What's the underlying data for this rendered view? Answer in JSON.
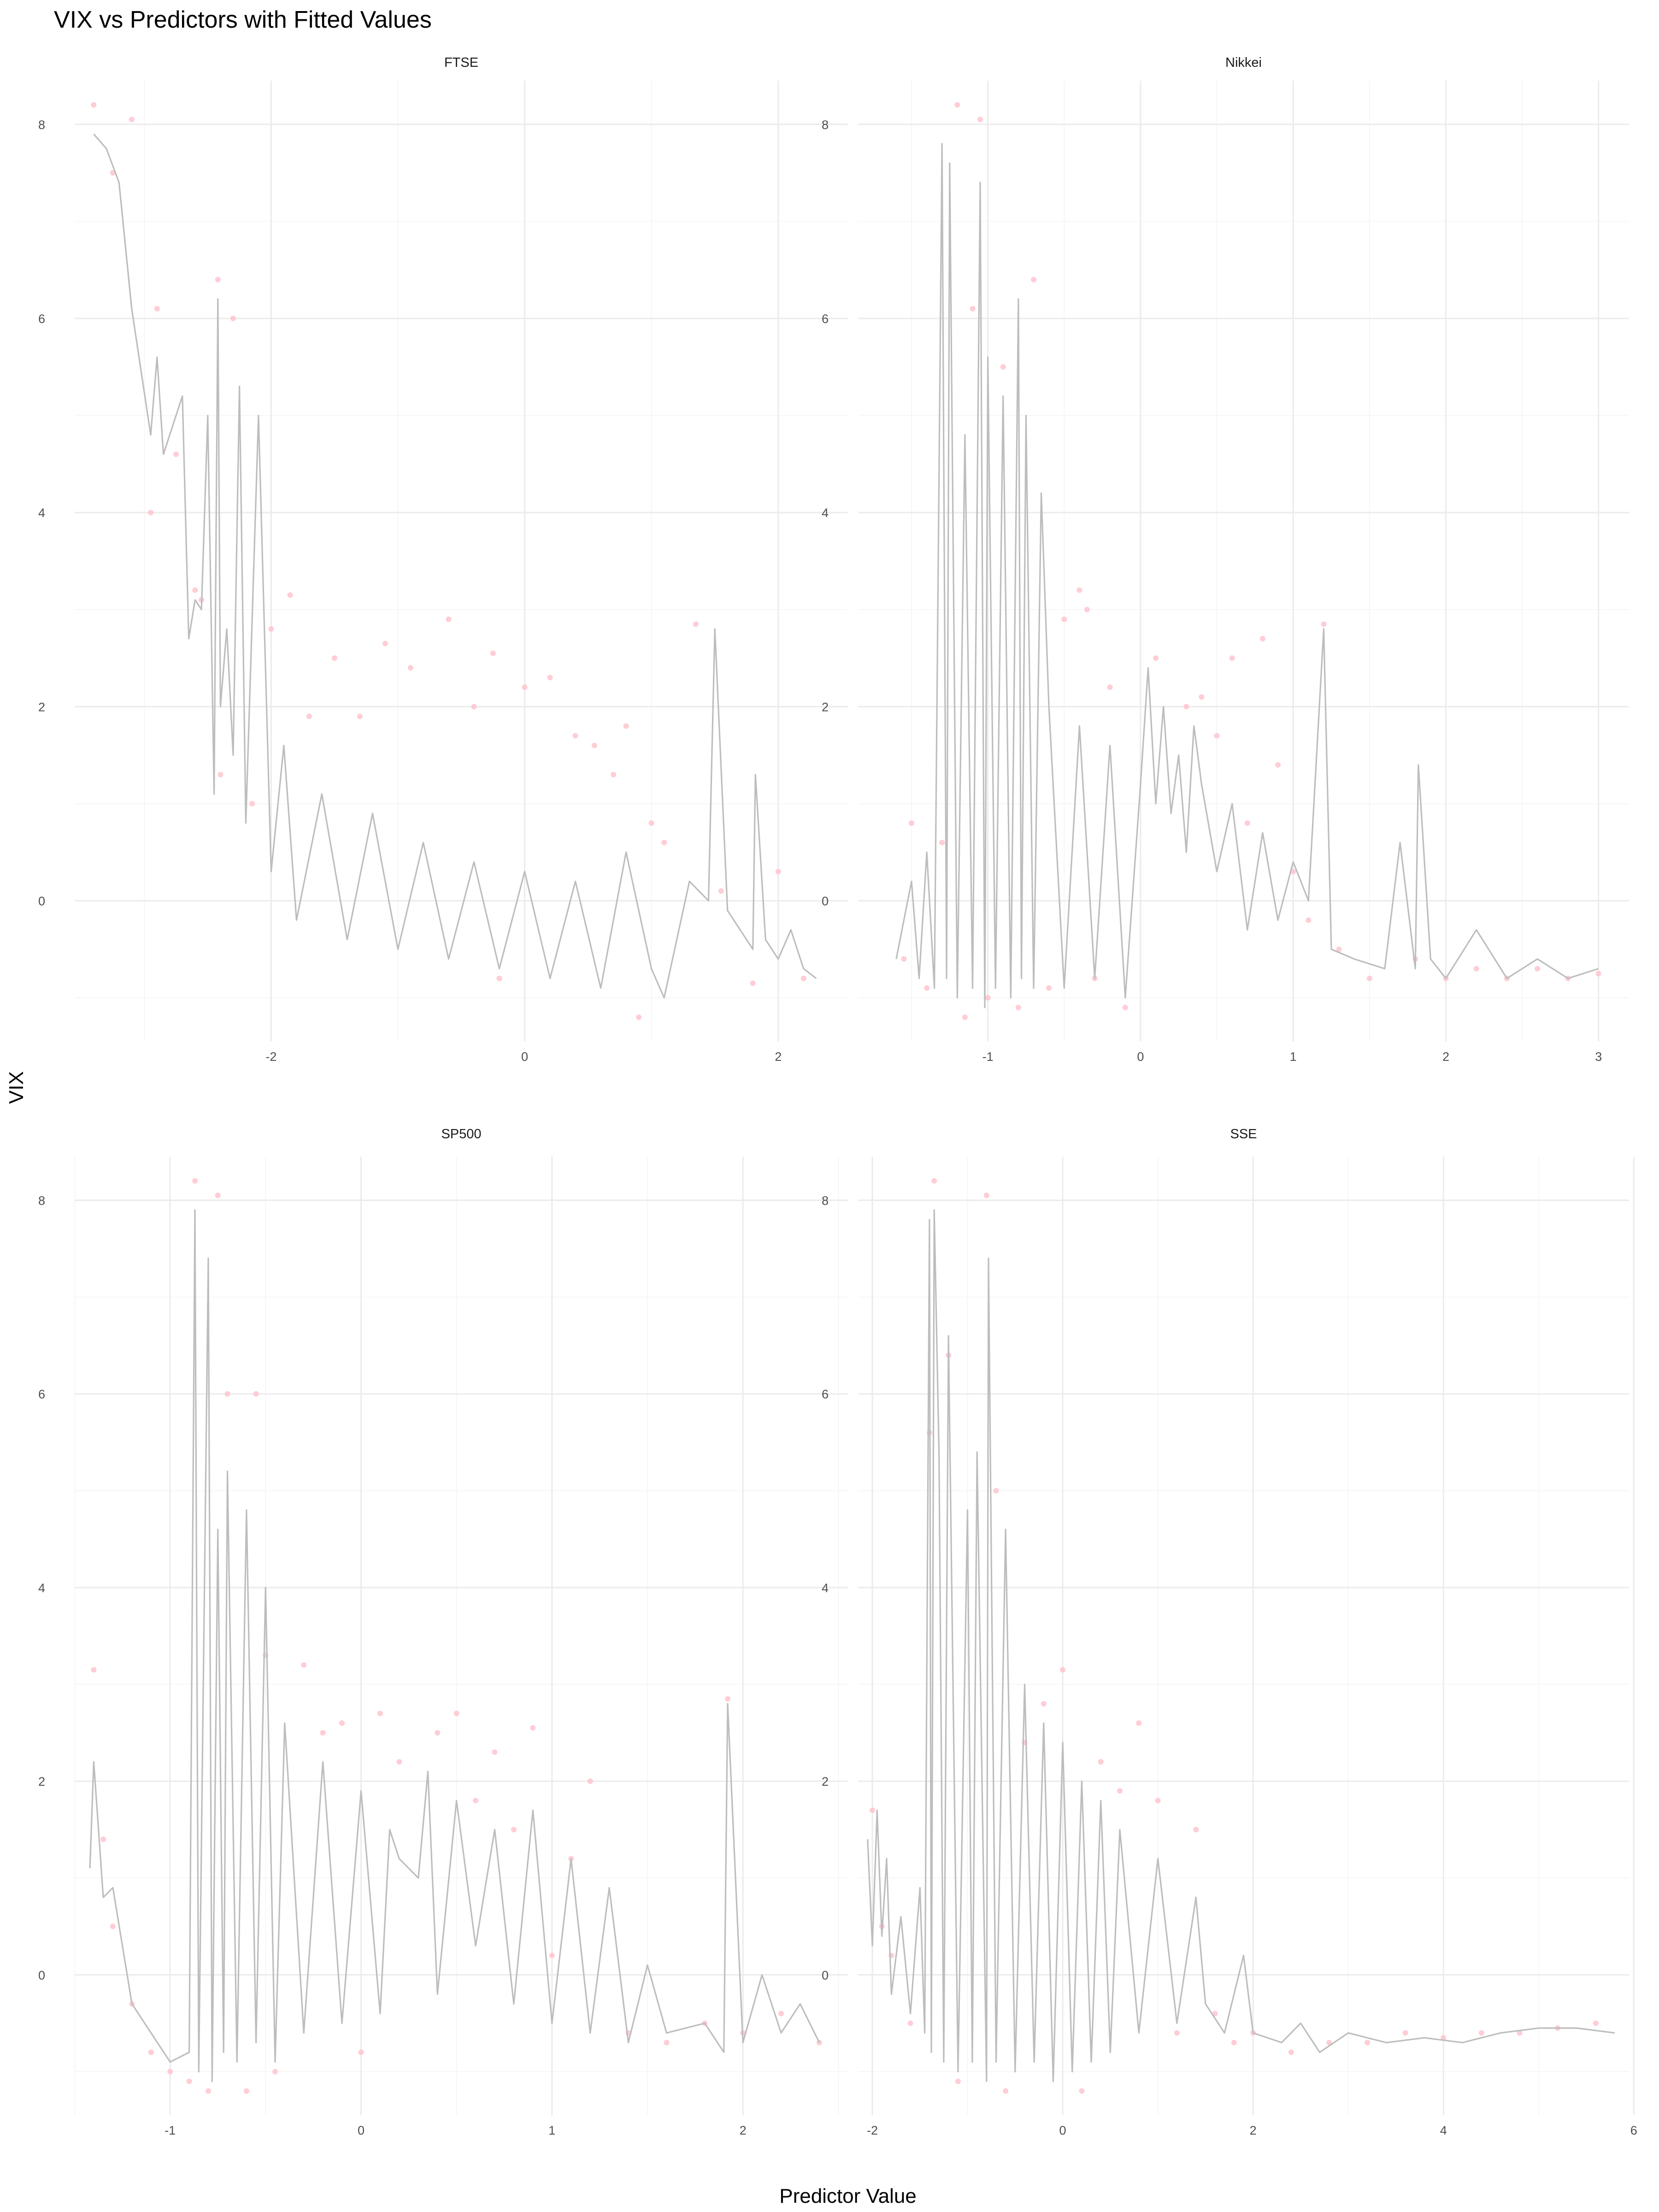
{
  "title": "VIX vs Predictors with Fitted Values",
  "xlabel": "Predictor Value",
  "ylabel": "VIX",
  "colors": {
    "points": "#ffc0cb",
    "fitted_line": "#bdbdbd",
    "grid": "#ebebeb"
  },
  "chart_data": [
    {
      "type": "scatter",
      "panel": "FTSE",
      "xlim": [
        -3.55,
        2.55
      ],
      "ylim": [
        -1.45,
        8.45
      ],
      "x_ticks": [
        -2,
        0,
        2
      ],
      "y_ticks": [
        0,
        2,
        4,
        6,
        8
      ],
      "grid": true,
      "series": [
        {
          "name": "",
          "kind": "points",
          "x": [
            -3.4,
            -3.25,
            -3.1,
            -2.95,
            -2.9,
            -2.75,
            -2.6,
            -2.55,
            -2.42,
            -2.4,
            -2.3,
            -2.15,
            -2.0,
            -1.85,
            -1.7,
            -1.5,
            -1.3,
            -1.1,
            -0.9,
            -0.6,
            -0.4,
            -0.25,
            -0.2,
            0.0,
            0.2,
            0.4,
            0.55,
            0.7,
            0.8,
            0.9,
            1.0,
            1.1,
            1.35,
            1.55,
            1.8,
            2.0,
            2.2
          ],
          "y": [
            8.2,
            7.5,
            8.05,
            4.0,
            6.1,
            4.6,
            3.2,
            3.1,
            6.4,
            1.3,
            6.0,
            1.0,
            2.8,
            3.15,
            1.9,
            2.5,
            1.9,
            2.65,
            2.4,
            2.9,
            2.0,
            2.55,
            -0.8,
            2.2,
            2.3,
            1.7,
            1.6,
            1.3,
            1.8,
            -1.2,
            0.8,
            0.6,
            2.85,
            0.1,
            -0.85,
            0.3,
            -0.8
          ]
        },
        {
          "name": "",
          "kind": "line",
          "x": [
            -3.4,
            -3.3,
            -3.2,
            -3.1,
            -2.95,
            -2.9,
            -2.85,
            -2.8,
            -2.7,
            -2.65,
            -2.6,
            -2.55,
            -2.5,
            -2.45,
            -2.42,
            -2.4,
            -2.35,
            -2.3,
            -2.25,
            -2.2,
            -2.1,
            -2.0,
            -1.9,
            -1.8,
            -1.6,
            -1.4,
            -1.2,
            -1.0,
            -0.8,
            -0.6,
            -0.4,
            -0.2,
            0.0,
            0.2,
            0.4,
            0.6,
            0.8,
            1.0,
            1.1,
            1.3,
            1.45,
            1.5,
            1.6,
            1.8,
            1.82,
            1.9,
            2.0,
            2.1,
            2.2,
            2.3
          ],
          "y": [
            7.9,
            7.75,
            7.4,
            6.1,
            4.8,
            5.6,
            4.6,
            4.8,
            5.2,
            2.7,
            3.1,
            3.0,
            5.0,
            1.1,
            6.2,
            2.0,
            2.8,
            1.5,
            5.3,
            0.8,
            5.0,
            0.3,
            1.6,
            -0.2,
            1.1,
            -0.4,
            0.9,
            -0.5,
            0.6,
            -0.6,
            0.4,
            -0.7,
            0.3,
            -0.8,
            0.2,
            -0.9,
            0.5,
            -0.7,
            -1.0,
            0.2,
            0.0,
            2.8,
            -0.1,
            -0.5,
            1.3,
            -0.4,
            -0.6,
            -0.3,
            -0.7,
            -0.8
          ]
        }
      ]
    },
    {
      "type": "scatter",
      "panel": "Nikkei",
      "xlim": [
        -1.85,
        3.2
      ],
      "ylim": [
        -1.45,
        8.45
      ],
      "x_ticks": [
        -1,
        0,
        1,
        2,
        3
      ],
      "y_ticks": [
        0,
        2,
        4,
        6,
        8
      ],
      "grid": true,
      "series": [
        {
          "name": "",
          "kind": "points",
          "x": [
            -1.55,
            -1.5,
            -1.4,
            -1.3,
            -1.2,
            -1.15,
            -1.1,
            -1.05,
            -1.0,
            -0.9,
            -0.8,
            -0.7,
            -0.6,
            -0.5,
            -0.4,
            -0.35,
            -0.3,
            -0.2,
            -0.1,
            0.1,
            0.3,
            0.4,
            0.5,
            0.6,
            0.7,
            0.8,
            0.9,
            1.0,
            1.1,
            1.2,
            1.3,
            1.5,
            1.8,
            2.0,
            2.2,
            2.4,
            2.6,
            2.8,
            3.0
          ],
          "y": [
            -0.6,
            0.8,
            -0.9,
            0.6,
            8.2,
            -1.2,
            6.1,
            8.05,
            -1.0,
            5.5,
            -1.1,
            6.4,
            -0.9,
            2.9,
            3.2,
            3.0,
            -0.8,
            2.2,
            -1.1,
            2.5,
            2.0,
            2.1,
            1.7,
            2.5,
            0.8,
            2.7,
            1.4,
            0.3,
            -0.2,
            2.85,
            -0.5,
            -0.8,
            -0.6,
            -0.8,
            -0.7,
            -0.8,
            -0.7,
            -0.8,
            -0.75
          ]
        },
        {
          "name": "",
          "kind": "line",
          "x": [
            -1.6,
            -1.5,
            -1.45,
            -1.4,
            -1.35,
            -1.3,
            -1.27,
            -1.25,
            -1.2,
            -1.15,
            -1.1,
            -1.05,
            -1.02,
            -1.0,
            -0.95,
            -0.9,
            -0.85,
            -0.8,
            -0.78,
            -0.75,
            -0.7,
            -0.65,
            -0.6,
            -0.5,
            -0.4,
            -0.3,
            -0.2,
            -0.1,
            0.0,
            0.05,
            0.1,
            0.15,
            0.2,
            0.25,
            0.3,
            0.35,
            0.4,
            0.5,
            0.6,
            0.7,
            0.8,
            0.9,
            1.0,
            1.1,
            1.2,
            1.25,
            1.4,
            1.6,
            1.7,
            1.8,
            1.82,
            1.9,
            2.0,
            2.2,
            2.4,
            2.6,
            2.8,
            3.0
          ],
          "y": [
            -0.6,
            0.2,
            -0.8,
            0.5,
            -0.9,
            7.8,
            -0.8,
            7.6,
            -1.0,
            4.8,
            -0.9,
            7.4,
            -1.1,
            5.6,
            -0.9,
            5.2,
            -1.0,
            6.2,
            -0.8,
            5.0,
            -0.9,
            4.2,
            2.0,
            -0.9,
            1.8,
            -0.8,
            1.6,
            -1.0,
            1.2,
            2.4,
            1.0,
            2.0,
            0.9,
            1.5,
            0.5,
            1.8,
            1.2,
            0.3,
            1.0,
            -0.3,
            0.7,
            -0.2,
            0.4,
            0.0,
            2.8,
            -0.5,
            -0.6,
            -0.7,
            0.6,
            -0.7,
            1.4,
            -0.6,
            -0.8,
            -0.3,
            -0.8,
            -0.6,
            -0.8,
            -0.7
          ]
        }
      ]
    },
    {
      "type": "scatter",
      "panel": "SP500",
      "xlim": [
        -1.5,
        2.55
      ],
      "ylim": [
        -1.45,
        8.45
      ],
      "x_ticks": [
        -1,
        0,
        1,
        2
      ],
      "y_ticks": [
        0,
        2,
        4,
        6,
        8
      ],
      "grid": true,
      "series": [
        {
          "name": "",
          "kind": "points",
          "x": [
            -1.4,
            -1.35,
            -1.3,
            -1.2,
            -1.1,
            -1.0,
            -0.9,
            -0.87,
            -0.8,
            -0.75,
            -0.7,
            -0.6,
            -0.55,
            -0.5,
            -0.45,
            -0.3,
            -0.2,
            -0.1,
            0.0,
            0.1,
            0.2,
            0.4,
            0.5,
            0.6,
            0.7,
            0.8,
            0.9,
            1.0,
            1.1,
            1.2,
            1.4,
            1.6,
            1.8,
            1.92,
            2.0,
            2.2,
            2.4
          ],
          "y": [
            3.15,
            1.4,
            0.5,
            -0.3,
            -0.8,
            -1.0,
            -1.1,
            8.2,
            -1.2,
            8.05,
            6.0,
            -1.2,
            6.0,
            3.3,
            -1.0,
            3.2,
            2.5,
            2.6,
            -0.8,
            2.7,
            2.2,
            2.5,
            2.7,
            1.8,
            2.3,
            1.5,
            2.55,
            0.2,
            1.2,
            2.0,
            -0.6,
            -0.7,
            -0.5,
            2.85,
            -0.6,
            -0.4,
            -0.7
          ]
        },
        {
          "name": "",
          "kind": "line",
          "x": [
            -1.42,
            -1.4,
            -1.35,
            -1.3,
            -1.25,
            -1.2,
            -1.1,
            -1.0,
            -0.9,
            -0.87,
            -0.85,
            -0.8,
            -0.78,
            -0.75,
            -0.72,
            -0.7,
            -0.65,
            -0.6,
            -0.55,
            -0.5,
            -0.45,
            -0.4,
            -0.3,
            -0.2,
            -0.1,
            0.0,
            0.1,
            0.15,
            0.2,
            0.3,
            0.35,
            0.4,
            0.5,
            0.6,
            0.7,
            0.8,
            0.9,
            1.0,
            1.1,
            1.2,
            1.3,
            1.4,
            1.5,
            1.6,
            1.8,
            1.9,
            1.92,
            2.0,
            2.1,
            2.2,
            2.3,
            2.4
          ],
          "y": [
            1.1,
            2.2,
            0.8,
            0.9,
            0.3,
            -0.3,
            -0.6,
            -0.9,
            -0.8,
            7.9,
            -1.0,
            7.4,
            -1.1,
            4.6,
            -0.8,
            5.2,
            -0.9,
            4.8,
            -0.7,
            4.0,
            -0.9,
            2.6,
            -0.6,
            2.2,
            -0.5,
            1.9,
            -0.4,
            1.5,
            1.2,
            1.0,
            2.1,
            -0.2,
            1.8,
            0.3,
            1.5,
            -0.3,
            1.7,
            -0.5,
            1.2,
            -0.6,
            0.9,
            -0.7,
            0.1,
            -0.6,
            -0.5,
            -0.8,
            2.8,
            -0.7,
            0.0,
            -0.6,
            -0.3,
            -0.7
          ]
        }
      ]
    },
    {
      "type": "scatter",
      "panel": "SSE",
      "xlim": [
        -2.15,
        5.95
      ],
      "ylim": [
        -1.45,
        8.45
      ],
      "x_ticks": [
        -2,
        0,
        2,
        4,
        6
      ],
      "y_ticks": [
        0,
        2,
        4,
        6,
        8
      ],
      "grid": true,
      "series": [
        {
          "name": "",
          "kind": "points",
          "x": [
            -2.0,
            -1.9,
            -1.8,
            -1.6,
            -1.4,
            -1.35,
            -1.2,
            -1.1,
            -0.8,
            -0.7,
            -0.6,
            -0.4,
            -0.2,
            0.0,
            0.2,
            0.4,
            0.6,
            0.8,
            1.0,
            1.2,
            1.4,
            1.6,
            1.8,
            2.0,
            2.4,
            2.8,
            3.2,
            3.6,
            4.0,
            4.4,
            4.8,
            5.2,
            5.6
          ],
          "y": [
            1.7,
            0.5,
            0.2,
            -0.5,
            5.6,
            8.2,
            6.4,
            -1.1,
            8.05,
            5.0,
            -1.2,
            2.4,
            2.8,
            3.15,
            -1.2,
            2.2,
            1.9,
            2.6,
            1.8,
            -0.6,
            1.5,
            -0.4,
            -0.7,
            -0.6,
            -0.8,
            -0.7,
            -0.7,
            -0.6,
            -0.65,
            -0.6,
            -0.6,
            -0.55,
            -0.5
          ]
        },
        {
          "name": "",
          "kind": "line",
          "x": [
            -2.05,
            -2.0,
            -1.95,
            -1.9,
            -1.85,
            -1.8,
            -1.7,
            -1.6,
            -1.5,
            -1.45,
            -1.4,
            -1.38,
            -1.35,
            -1.3,
            -1.25,
            -1.2,
            -1.1,
            -1.0,
            -0.95,
            -0.9,
            -0.8,
            -0.78,
            -0.7,
            -0.6,
            -0.5,
            -0.4,
            -0.3,
            -0.2,
            -0.1,
            0.0,
            0.1,
            0.2,
            0.3,
            0.4,
            0.5,
            0.6,
            0.8,
            1.0,
            1.2,
            1.4,
            1.5,
            1.7,
            1.9,
            2.0,
            2.3,
            2.5,
            2.7,
            3.0,
            3.4,
            3.8,
            4.2,
            4.6,
            5.0,
            5.4,
            5.8
          ],
          "y": [
            1.4,
            0.3,
            1.7,
            0.4,
            1.2,
            -0.2,
            0.6,
            -0.4,
            0.9,
            -0.6,
            7.8,
            -0.8,
            7.9,
            5.4,
            -0.9,
            6.6,
            -1.0,
            4.8,
            -0.9,
            5.4,
            -1.1,
            7.4,
            -0.9,
            4.6,
            -1.0,
            3.0,
            -0.9,
            2.6,
            -1.1,
            2.4,
            -1.0,
            2.0,
            -0.9,
            1.8,
            -0.8,
            1.5,
            -0.6,
            1.2,
            -0.5,
            0.8,
            -0.3,
            -0.6,
            0.2,
            -0.6,
            -0.7,
            -0.5,
            -0.8,
            -0.6,
            -0.7,
            -0.65,
            -0.7,
            -0.6,
            -0.55,
            -0.55,
            -0.6
          ]
        }
      ]
    }
  ]
}
